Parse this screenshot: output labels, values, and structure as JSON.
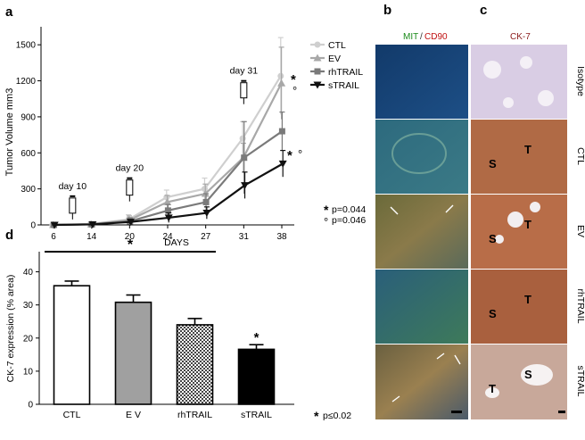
{
  "panels": {
    "a": "a",
    "b": "b",
    "c": "c",
    "d": "d"
  },
  "chart_data": [
    {
      "type": "line",
      "panel": "a",
      "title": "",
      "xlabel": "DAYS",
      "ylabel": "Tumor Volume mm3",
      "x": [
        6,
        14,
        20,
        24,
        27,
        31,
        38
      ],
      "yticks": [
        "0",
        "300",
        "600",
        "900",
        "1200",
        "1500"
      ],
      "ylim": [
        0,
        1650
      ],
      "series": [
        {
          "name": "CTL",
          "color": "#cfcfcf",
          "marker": "circle",
          "values": [
            0,
            8,
            45,
            230,
            300,
            720,
            1240
          ],
          "errors": [
            0,
            10,
            40,
            60,
            90,
            140,
            320
          ]
        },
        {
          "name": "EV",
          "color": "#a8a8a8",
          "marker": "triangle",
          "values": [
            0,
            6,
            40,
            190,
            260,
            560,
            1180
          ],
          "errors": [
            0,
            8,
            35,
            55,
            80,
            120,
            300
          ]
        },
        {
          "name": "rhTRAIL",
          "color": "#7a7a7a",
          "marker": "square",
          "values": [
            0,
            5,
            30,
            120,
            190,
            560,
            780
          ],
          "errors": [
            0,
            6,
            30,
            50,
            70,
            300,
            160
          ]
        },
        {
          "name": "sTRAIL",
          "color": "#111111",
          "marker": "triangle-down",
          "values": [
            0,
            4,
            25,
            60,
            100,
            330,
            510
          ],
          "errors": [
            0,
            5,
            20,
            40,
            50,
            110,
            110
          ]
        }
      ],
      "injections": [
        {
          "label": "day 10",
          "x": 10,
          "y": 120
        },
        {
          "label": "day 20",
          "x": 20,
          "y": 270
        },
        {
          "label": "day 31",
          "x": 31,
          "y": 1080
        }
      ],
      "significance": [
        {
          "text": "p=0.044",
          "symbol": "*"
        },
        {
          "text": "p=0.046",
          "symbol": "°"
        }
      ]
    },
    {
      "type": "bar",
      "panel": "d",
      "title": "",
      "xlabel": "",
      "ylabel": "CK-7 expression (% area)",
      "categories": [
        "CTL",
        "E V",
        "rhTRAIL",
        "sTRAIL"
      ],
      "values": [
        35.8,
        30.8,
        24.0,
        16.6
      ],
      "errors": [
        1.4,
        2.2,
        1.9,
        1.4
      ],
      "styles": [
        "white",
        "gray",
        "checker",
        "black"
      ],
      "yticks": [
        "0",
        "10",
        "20",
        "30",
        "40"
      ],
      "ylim": [
        0,
        45
      ],
      "significance_star": "*",
      "significance_note": "p≤0.02"
    }
  ],
  "micrographs": {
    "b_title_green": "MIT",
    "b_title_sep": "/",
    "b_title_red": "CD90",
    "c_title": "CK-7",
    "rows": [
      {
        "label": "Isotype",
        "marks": []
      },
      {
        "label": "CTL",
        "marks": [
          "S",
          "T"
        ]
      },
      {
        "label": "EV",
        "marks": [
          "S",
          "T"
        ]
      },
      {
        "label": "rhTRAIL",
        "marks": [
          "S",
          "T"
        ]
      },
      {
        "label": "sTRAIL",
        "marks": [
          "T",
          "S"
        ]
      }
    ]
  }
}
